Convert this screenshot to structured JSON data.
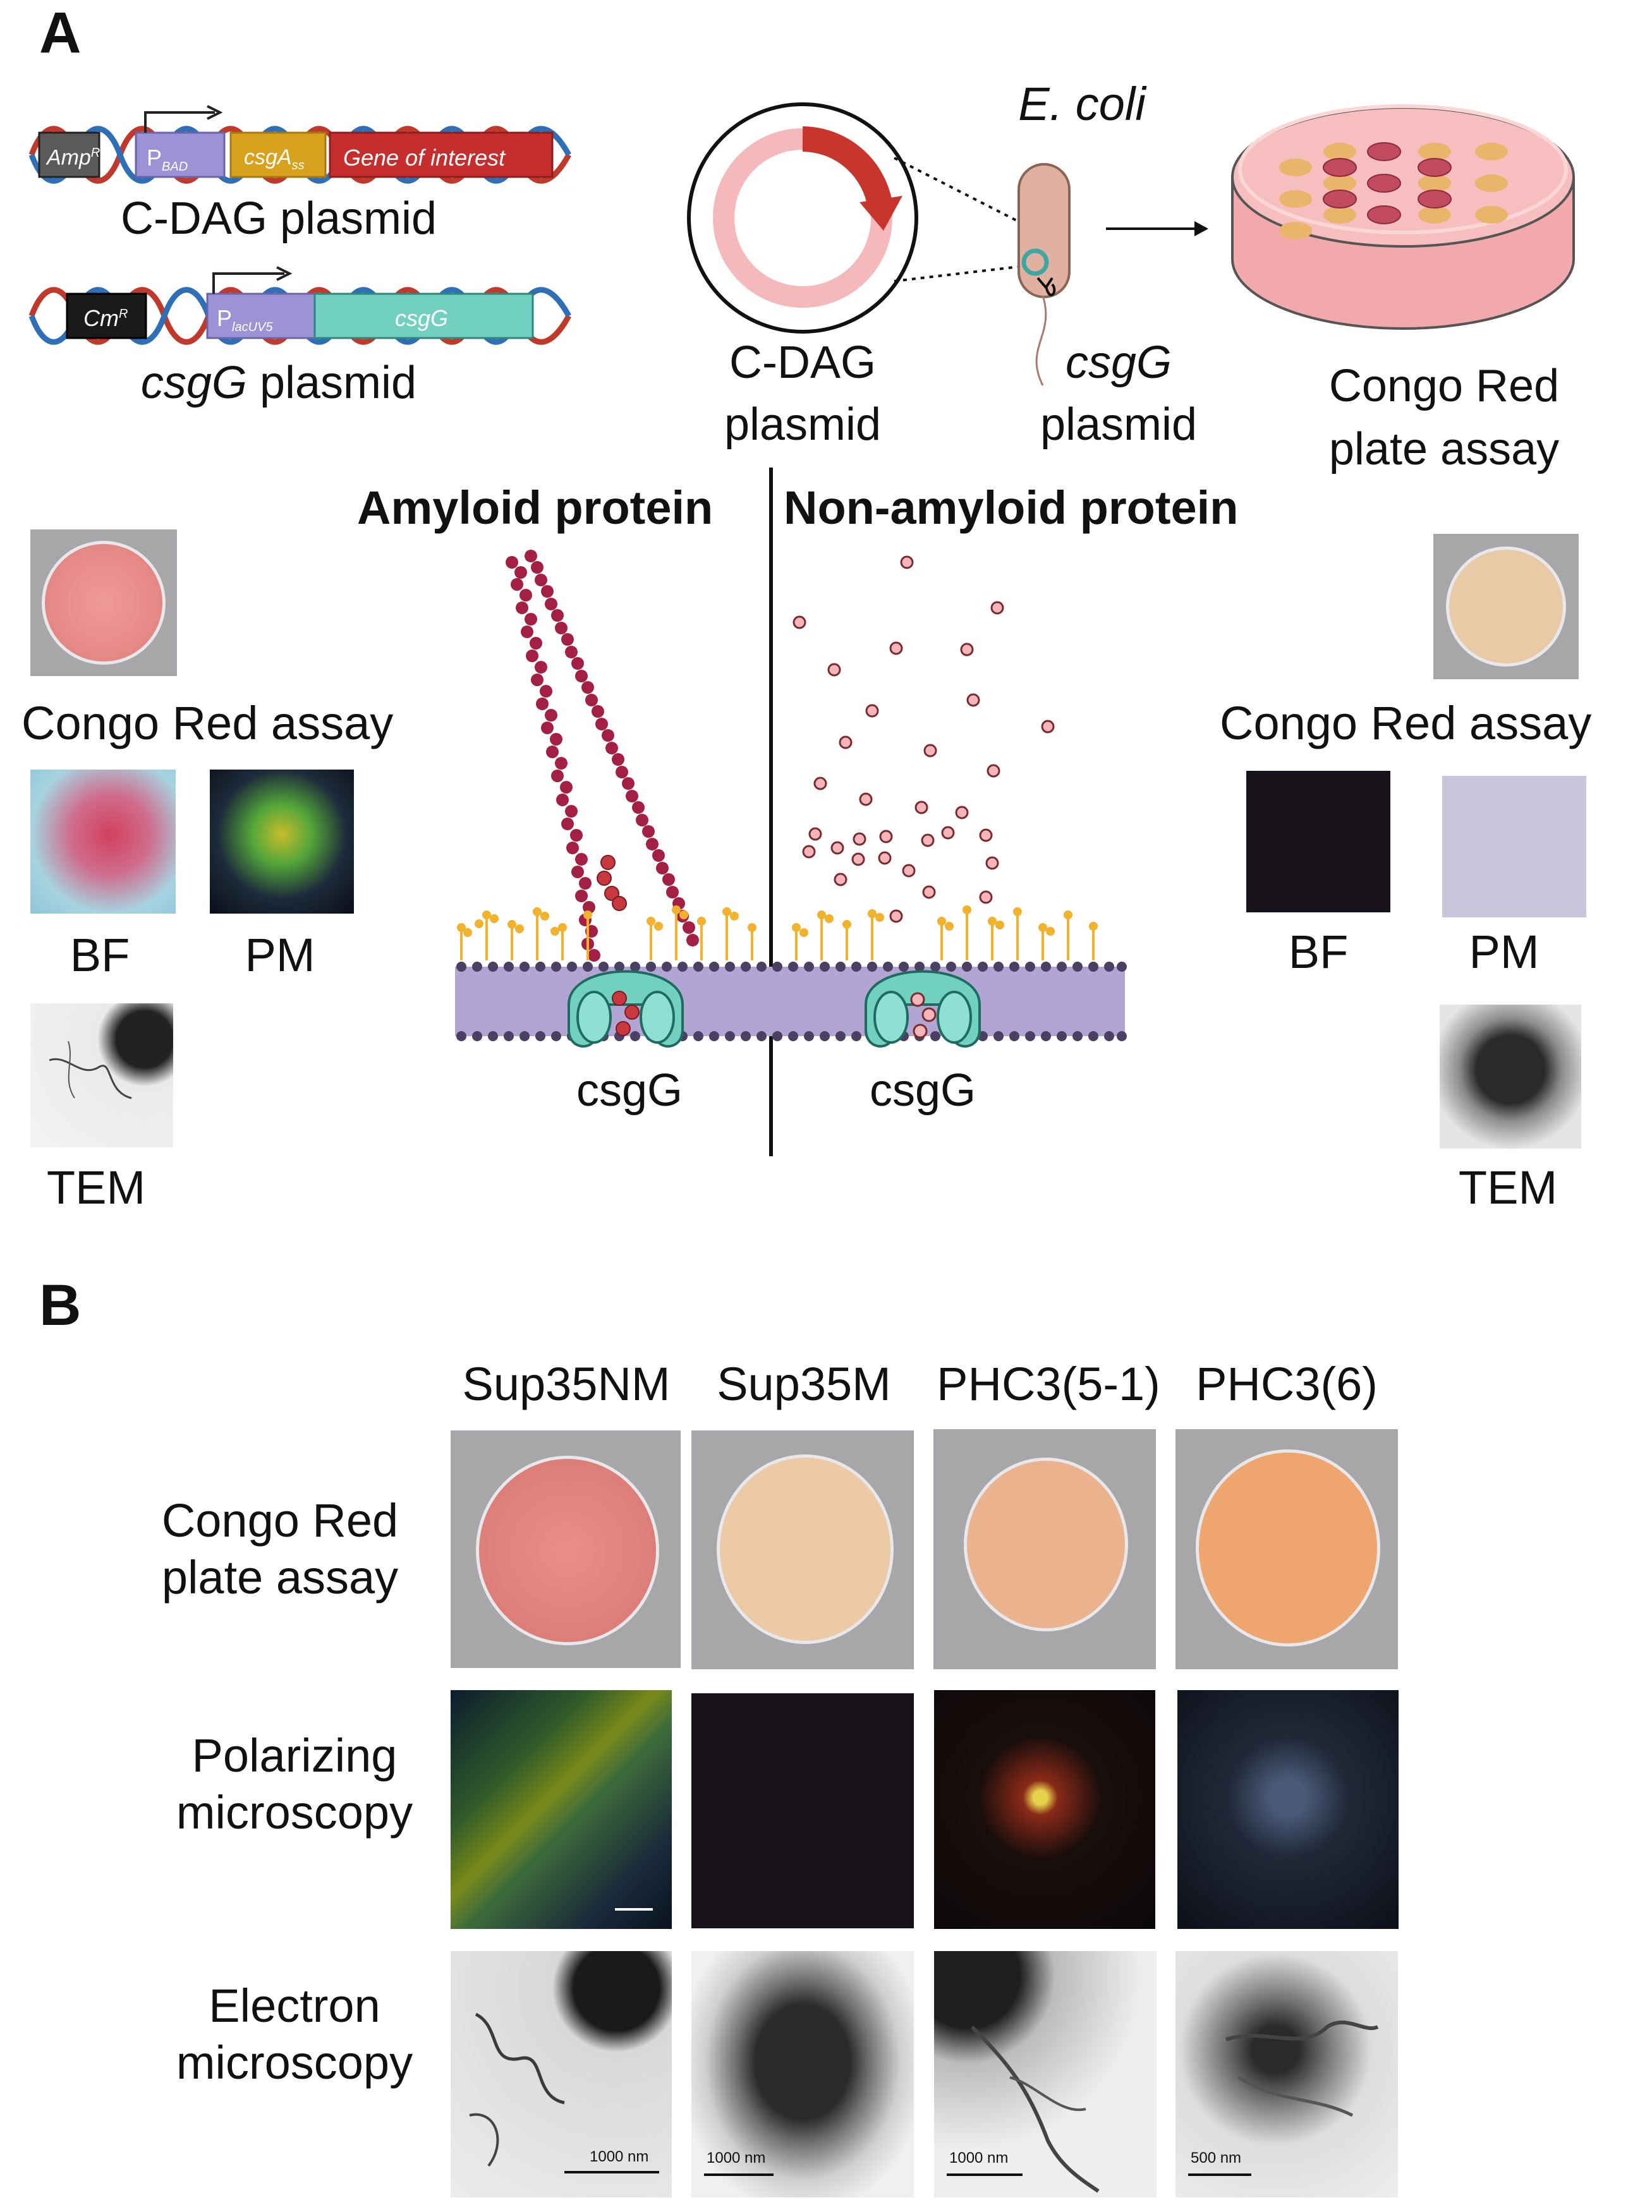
{
  "panel_a": {
    "letter": "A",
    "cdag": {
      "amp": "Amp",
      "amp_sup": "R",
      "pbad": "P",
      "pbad_sub": "BAD",
      "csga": "csgA",
      "csga_sub": "ss",
      "goi": "Gene of interest",
      "label": "C-DAG plasmid"
    },
    "csgg_plasmid": {
      "cm": "Cm",
      "cm_sup": "R",
      "plac": "P",
      "plac_sub": "lacUV5",
      "csgg": "csgG",
      "label_italic": "csgG",
      "label_rest": " plasmid"
    },
    "organism": "E. coli",
    "circle_label_1": "C-DAG",
    "circle_label_2": "plasmid",
    "cell_label_1": "csgG",
    "cell_label_2": "plasmid",
    "dish_label_1": "Congo Red",
    "dish_label_2": "plate assay",
    "amyloid_title": "Amyloid protein",
    "nonamyloid_title": "Non-amyloid protein",
    "left": {
      "congo": "Congo Red assay",
      "bf": "BF",
      "pm": "PM",
      "tem": "TEM"
    },
    "right": {
      "congo": "Congo Red assay",
      "bf": "BF",
      "pm": "PM",
      "tem": "TEM"
    },
    "pore_left": "csgG",
    "pore_right": "csgG"
  },
  "panel_b": {
    "letter": "B",
    "columns": [
      "Sup35NM",
      "Sup35M",
      "PHC3(5-1)",
      "PHC3(6)"
    ],
    "rows": [
      {
        "line1": "Congo Red",
        "line2": "plate assay"
      },
      {
        "line1": "Polarizing",
        "line2": "microscopy"
      },
      {
        "line1": "Electron",
        "line2": "microscopy"
      }
    ],
    "scale_labels": [
      "1000 nm",
      "1000 nm",
      "1000 nm",
      "500 nm"
    ]
  },
  "colors": {
    "dna_red": "#c0392b",
    "dna_blue": "#2e6fb7",
    "amp_gray": "#5a5a5a",
    "pbad_purple": "#9c93d6",
    "csga_gold": "#d9a21e",
    "goi_red": "#c62d2d",
    "cm_black": "#1a1a1a",
    "csgg_teal": "#72d0c1",
    "amyloid_fiber": "#a31f43",
    "particle_pink": "#f3b5b9",
    "membrane_purple": "#b1a6d3",
    "lipid_orange": "#f2b22e"
  }
}
